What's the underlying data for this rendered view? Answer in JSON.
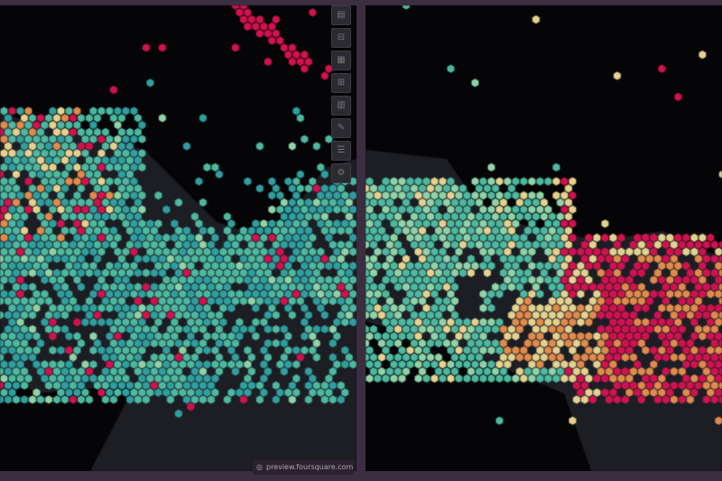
{
  "url": "preview.foursquare.com",
  "toolbar": {
    "buttons": [
      {
        "icon": "layers-icon",
        "glyph": "▤"
      },
      {
        "icon": "filter-icon",
        "glyph": "⊟"
      },
      {
        "icon": "table-icon",
        "glyph": "▦"
      },
      {
        "icon": "map-icon",
        "glyph": "⊞"
      },
      {
        "icon": "split-map-icon",
        "glyph": "▥"
      },
      {
        "icon": "draw-icon",
        "glyph": "✎"
      },
      {
        "icon": "legend-icon",
        "glyph": "☰"
      },
      {
        "icon": "settings-icon",
        "glyph": "⚙"
      }
    ]
  },
  "colors": {
    "background": "#050406",
    "land": "#1c1e24",
    "hex_scale": [
      "#2f9e9e",
      "#4cb8a0",
      "#8ed3a8",
      "#e3d18e",
      "#e08a4c",
      "#d1124f"
    ]
  }
}
